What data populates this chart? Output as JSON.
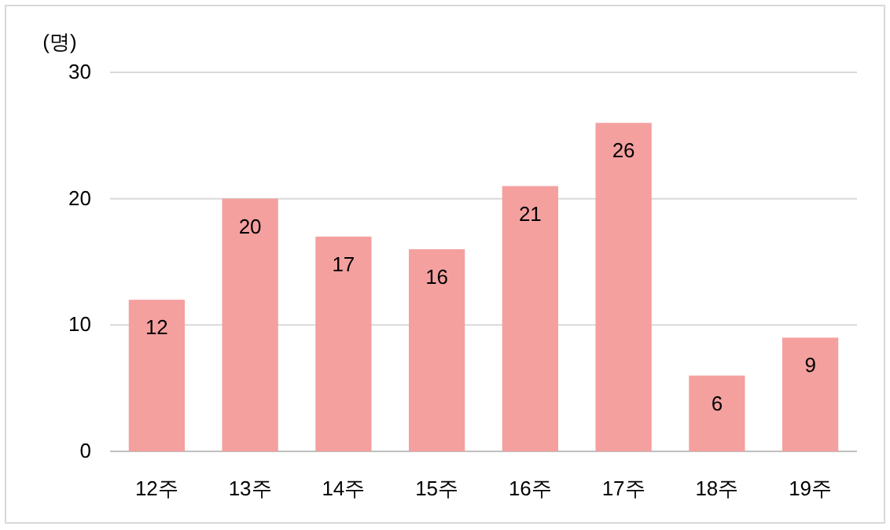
{
  "chart_data": {
    "type": "bar",
    "ylabel": "(명)",
    "categories": [
      "12주",
      "13주",
      "14주",
      "15주",
      "16주",
      "17주",
      "18주",
      "19주"
    ],
    "values": [
      12,
      20,
      17,
      16,
      21,
      26,
      6,
      9
    ],
    "color": "#f4a09f",
    "ylim": [
      0,
      30
    ],
    "yticks": [
      0,
      10,
      20,
      30
    ],
    "grid": "y",
    "data_labels": true
  }
}
